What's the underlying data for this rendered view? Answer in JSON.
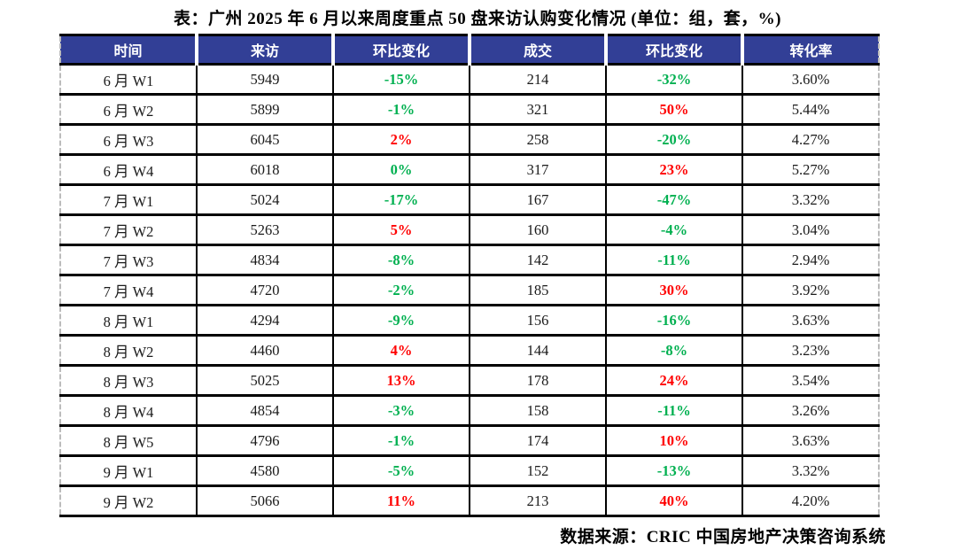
{
  "title": "表：广州 2025 年 6 月以来周度重点 50 盘来访认购变化情况 (单位：组，套，%)",
  "source_credit": "数据来源：CRIC 中国房地产决策咨询系统",
  "colors": {
    "header_bg": "#323F96",
    "header_text": "#FFFFFF",
    "increase_red": "#FF0000",
    "decrease_green": "#00B050",
    "grid_line": "#000000",
    "outer_dashed_border": "#BCBCBC"
  },
  "chart_data": {
    "type": "table",
    "title": "表：广州 2025 年 6 月以来周度重点 50 盘来访认购变化情况 (单位：组，套，%)",
    "columns": [
      "时间",
      "来访",
      "环比变化",
      "成交",
      "环比变化",
      "转化率"
    ],
    "rows": [
      {
        "time": "6 月 W1",
        "visits": "5949",
        "visits_wow": "-15%",
        "visits_wow_color": "green",
        "deals": "214",
        "deals_wow": "-32%",
        "deals_wow_color": "green",
        "conversion": "3.60%"
      },
      {
        "time": "6 月 W2",
        "visits": "5899",
        "visits_wow": "-1%",
        "visits_wow_color": "green",
        "deals": "321",
        "deals_wow": "50%",
        "deals_wow_color": "red",
        "conversion": "5.44%"
      },
      {
        "time": "6 月 W3",
        "visits": "6045",
        "visits_wow": "2%",
        "visits_wow_color": "red",
        "deals": "258",
        "deals_wow": "-20%",
        "deals_wow_color": "green",
        "conversion": "4.27%"
      },
      {
        "time": "6 月 W4",
        "visits": "6018",
        "visits_wow": "0%",
        "visits_wow_color": "green",
        "deals": "317",
        "deals_wow": "23%",
        "deals_wow_color": "red",
        "conversion": "5.27%"
      },
      {
        "time": "7 月 W1",
        "visits": "5024",
        "visits_wow": "-17%",
        "visits_wow_color": "green",
        "deals": "167",
        "deals_wow": "-47%",
        "deals_wow_color": "green",
        "conversion": "3.32%"
      },
      {
        "time": "7 月 W2",
        "visits": "5263",
        "visits_wow": "5%",
        "visits_wow_color": "red",
        "deals": "160",
        "deals_wow": "-4%",
        "deals_wow_color": "green",
        "conversion": "3.04%"
      },
      {
        "time": "7 月 W3",
        "visits": "4834",
        "visits_wow": "-8%",
        "visits_wow_color": "green",
        "deals": "142",
        "deals_wow": "-11%",
        "deals_wow_color": "green",
        "conversion": "2.94%"
      },
      {
        "time": "7 月 W4",
        "visits": "4720",
        "visits_wow": "-2%",
        "visits_wow_color": "green",
        "deals": "185",
        "deals_wow": "30%",
        "deals_wow_color": "red",
        "conversion": "3.92%"
      },
      {
        "time": "8 月 W1",
        "visits": "4294",
        "visits_wow": "-9%",
        "visits_wow_color": "green",
        "deals": "156",
        "deals_wow": "-16%",
        "deals_wow_color": "green",
        "conversion": "3.63%"
      },
      {
        "time": "8 月 W2",
        "visits": "4460",
        "visits_wow": "4%",
        "visits_wow_color": "red",
        "deals": "144",
        "deals_wow": "-8%",
        "deals_wow_color": "green",
        "conversion": "3.23%"
      },
      {
        "time": "8 月 W3",
        "visits": "5025",
        "visits_wow": "13%",
        "visits_wow_color": "red",
        "deals": "178",
        "deals_wow": "24%",
        "deals_wow_color": "red",
        "conversion": "3.54%"
      },
      {
        "time": "8 月 W4",
        "visits": "4854",
        "visits_wow": "-3%",
        "visits_wow_color": "green",
        "deals": "158",
        "deals_wow": "-11%",
        "deals_wow_color": "green",
        "conversion": "3.26%"
      },
      {
        "time": "8 月 W5",
        "visits": "4796",
        "visits_wow": "-1%",
        "visits_wow_color": "green",
        "deals": "174",
        "deals_wow": "10%",
        "deals_wow_color": "red",
        "conversion": "3.63%"
      },
      {
        "time": "9 月 W1",
        "visits": "4580",
        "visits_wow": "-5%",
        "visits_wow_color": "green",
        "deals": "152",
        "deals_wow": "-13%",
        "deals_wow_color": "green",
        "conversion": "3.32%"
      },
      {
        "time": "9 月 W2",
        "visits": "5066",
        "visits_wow": "11%",
        "visits_wow_color": "red",
        "deals": "213",
        "deals_wow": "40%",
        "deals_wow_color": "red",
        "conversion": "4.20%"
      }
    ]
  }
}
